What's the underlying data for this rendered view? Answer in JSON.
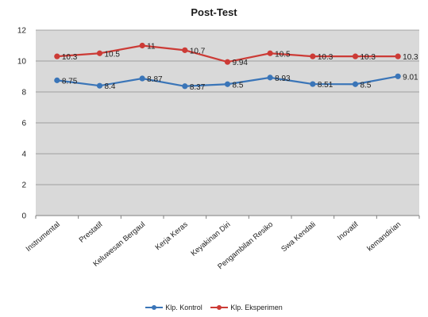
{
  "chart_data": {
    "type": "line",
    "title": "Post-Test",
    "xlabel": "",
    "ylabel": "",
    "categories": [
      "Instrumental",
      "Prestatif",
      "Keluwesan Bergaul",
      "Kerja Keras",
      "Keyakinan Diri",
      "Pengambilan Resiko",
      "Swa Kendali",
      "Inovatif",
      "kemandirian"
    ],
    "ylim": [
      0,
      12
    ],
    "yticks": [
      0,
      2,
      4,
      6,
      8,
      10,
      12
    ],
    "grid": true,
    "legend_position": "bottom",
    "series": [
      {
        "name": "Klp. Kontrol",
        "color": "#3a75b8",
        "values": [
          8.75,
          8.4,
          8.87,
          8.37,
          8.5,
          8.93,
          8.51,
          8.5,
          9.01
        ],
        "labels": [
          "8.75",
          "8.4",
          "8.87",
          "8.37",
          "8.5",
          "8.93",
          "8.51",
          "8.5",
          "9.01"
        ]
      },
      {
        "name": "Klp. Eksperimen",
        "color": "#cc3b36",
        "values": [
          10.3,
          10.5,
          11,
          10.7,
          9.94,
          10.5,
          10.3,
          10.3,
          10.3
        ],
        "labels": [
          "10.3",
          "10.5",
          "11",
          "10.7",
          "9.94",
          "10.5",
          "10.3",
          "10.3",
          "10.3"
        ]
      }
    ]
  }
}
